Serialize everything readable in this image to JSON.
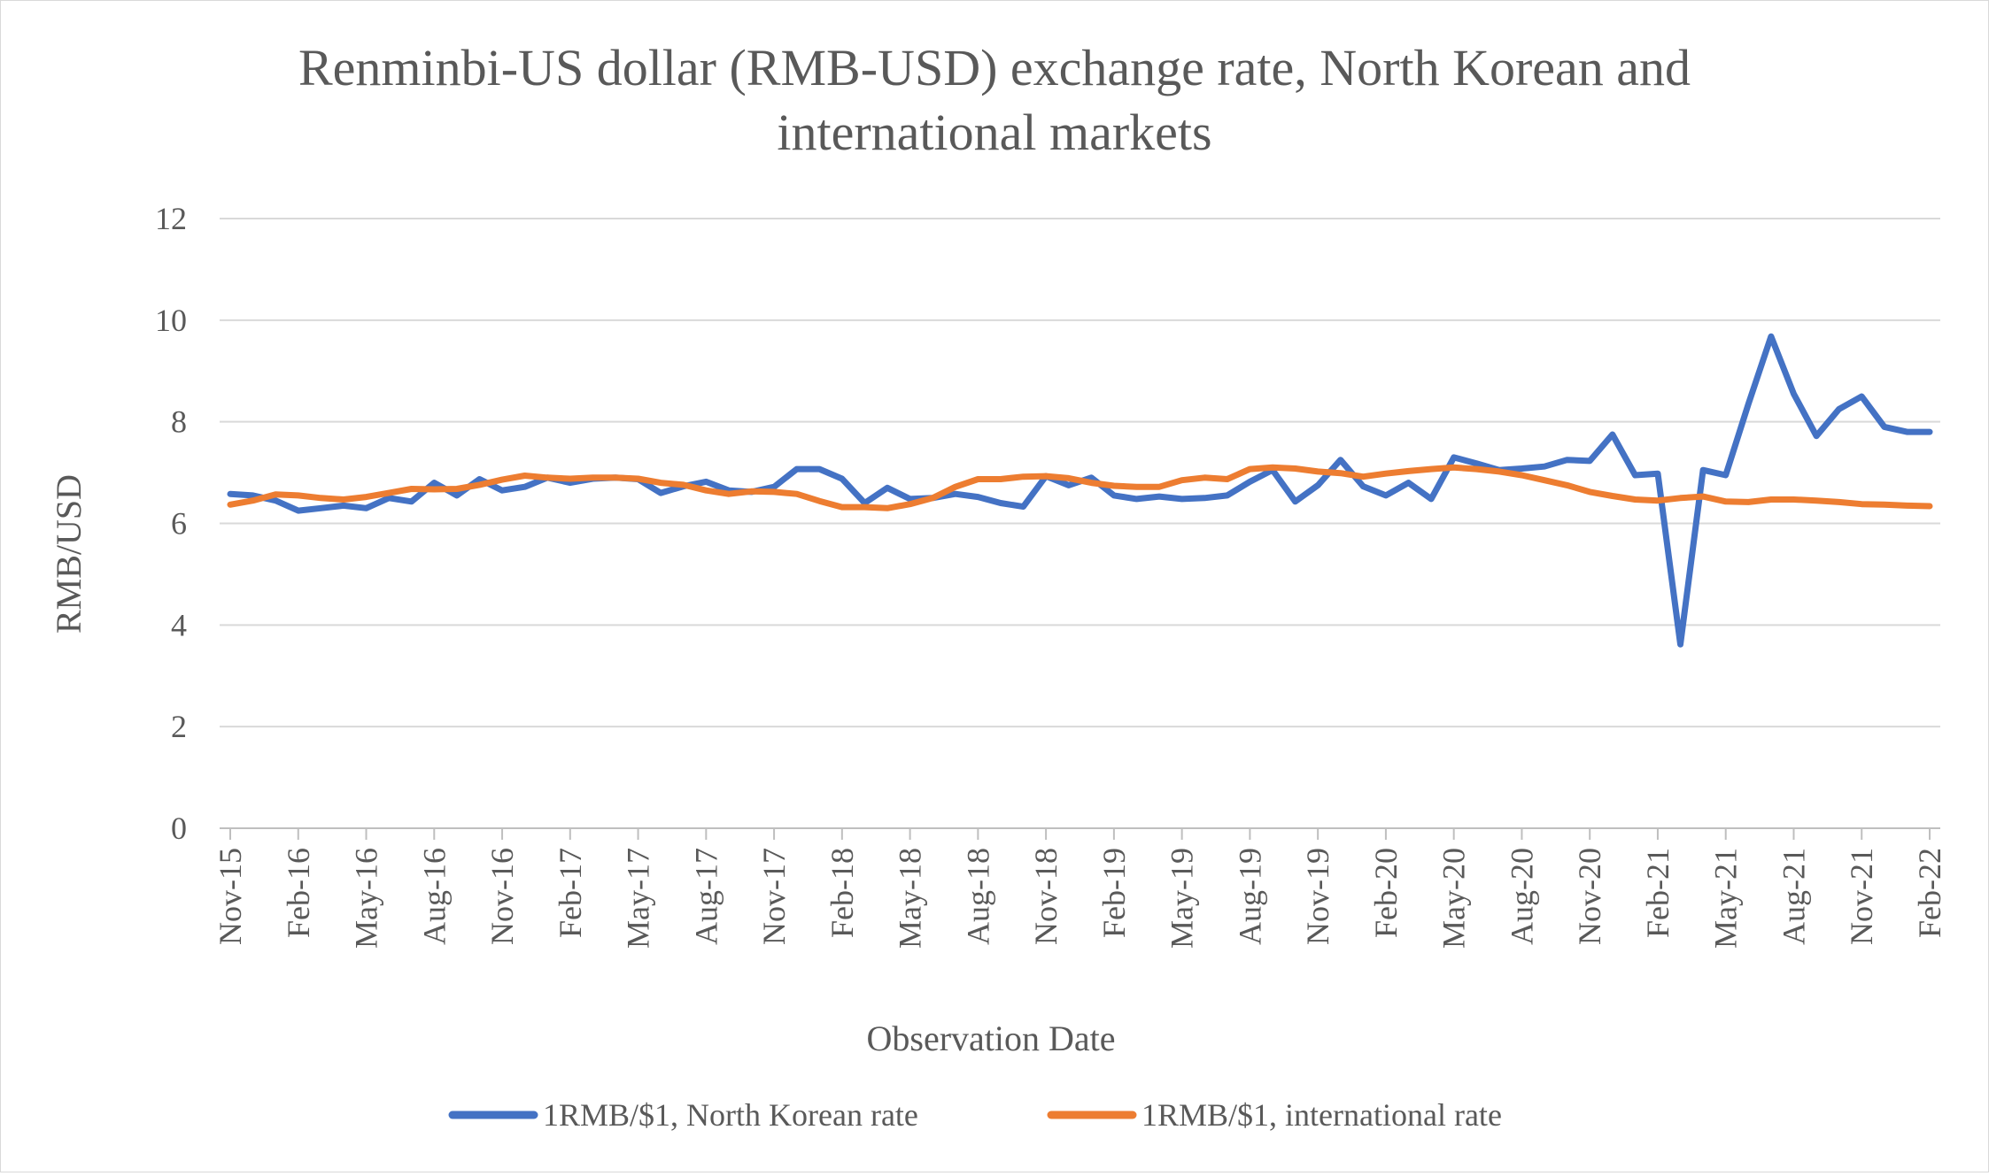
{
  "chart_data": {
    "type": "line",
    "title_lines": [
      "Renminbi-US dollar (RMB-USD) exchange rate, North Korean and",
      "international markets"
    ],
    "xlabel": "Observation Date",
    "ylabel": "RMB/USD",
    "ylim": [
      0,
      12
    ],
    "yticks": [
      "0",
      "2",
      "4",
      "6",
      "8",
      "10",
      "12"
    ],
    "grid": "horizontal",
    "legend_position": "bottom",
    "x_tick_labels": [
      "Nov-15",
      "Feb-16",
      "May-16",
      "Aug-16",
      "Nov-16",
      "Feb-17",
      "May-17",
      "Aug-17",
      "Nov-17",
      "Feb-18",
      "May-18",
      "Aug-18",
      "Nov-18",
      "Feb-19",
      "May-19",
      "Aug-19",
      "Nov-19",
      "Feb-20",
      "May-20",
      "Aug-20",
      "Nov-20",
      "Feb-21",
      "May-21",
      "Aug-21",
      "Nov-21",
      "Feb-22"
    ],
    "x": [
      "Nov-15",
      "Dec-15",
      "Jan-16",
      "Feb-16",
      "Mar-16",
      "Apr-16",
      "May-16",
      "Jun-16",
      "Jul-16",
      "Aug-16",
      "Sep-16",
      "Oct-16",
      "Nov-16",
      "Dec-16",
      "Jan-17",
      "Feb-17",
      "Mar-17",
      "Apr-17",
      "May-17",
      "Jun-17",
      "Jul-17",
      "Aug-17",
      "Sep-17",
      "Oct-17",
      "Nov-17",
      "Dec-17",
      "Jan-18",
      "Feb-18",
      "Mar-18",
      "Apr-18",
      "May-18",
      "Jun-18",
      "Jul-18",
      "Aug-18",
      "Sep-18",
      "Oct-18",
      "Nov-18",
      "Dec-18",
      "Jan-19",
      "Feb-19",
      "Mar-19",
      "Apr-19",
      "May-19",
      "Jun-19",
      "Jul-19",
      "Aug-19",
      "Sep-19",
      "Oct-19",
      "Nov-19",
      "Dec-19",
      "Jan-20",
      "Feb-20",
      "Mar-20",
      "Apr-20",
      "May-20",
      "Jun-20",
      "Jul-20",
      "Aug-20",
      "Sep-20",
      "Oct-20",
      "Nov-20",
      "Dec-20",
      "Jan-21",
      "Feb-21",
      "Mar-21",
      "Apr-21",
      "May-21",
      "Jun-21",
      "Jul-21",
      "Aug-21",
      "Sep-21",
      "Oct-21",
      "Nov-21",
      "Dec-21",
      "Jan-22",
      "Feb-22"
    ],
    "series": [
      {
        "name": "1RMB/$1, North Korean rate",
        "color": "#4472c4",
        "values": [
          6.58,
          6.55,
          6.45,
          6.25,
          6.3,
          6.35,
          6.3,
          6.5,
          6.43,
          6.8,
          6.55,
          6.87,
          6.65,
          6.72,
          6.9,
          6.8,
          6.88,
          6.9,
          6.87,
          6.6,
          6.73,
          6.82,
          6.65,
          6.62,
          6.72,
          7.07,
          7.07,
          6.88,
          6.4,
          6.7,
          6.48,
          6.5,
          6.58,
          6.52,
          6.4,
          6.33,
          6.93,
          6.75,
          6.9,
          6.55,
          6.48,
          6.53,
          6.48,
          6.5,
          6.55,
          6.82,
          7.05,
          6.43,
          6.75,
          7.25,
          6.73,
          6.55,
          6.8,
          6.48,
          7.3,
          7.18,
          7.05,
          7.08,
          7.12,
          7.25,
          7.23,
          7.75,
          6.95,
          6.98,
          3.62,
          7.05,
          6.95,
          8.35,
          9.68,
          8.55,
          7.72,
          8.25,
          8.5,
          7.9,
          7.8,
          7.8
        ]
      },
      {
        "name": "1RMB/$1, international rate",
        "color": "#ed7d31",
        "values": [
          6.37,
          6.45,
          6.57,
          6.55,
          6.5,
          6.47,
          6.52,
          6.6,
          6.68,
          6.67,
          6.68,
          6.76,
          6.86,
          6.94,
          6.9,
          6.88,
          6.9,
          6.9,
          6.88,
          6.8,
          6.76,
          6.65,
          6.58,
          6.63,
          6.62,
          6.58,
          6.44,
          6.32,
          6.32,
          6.3,
          6.38,
          6.5,
          6.72,
          6.87,
          6.87,
          6.92,
          6.93,
          6.89,
          6.8,
          6.74,
          6.72,
          6.72,
          6.85,
          6.9,
          6.87,
          7.07,
          7.1,
          7.08,
          7.02,
          6.99,
          6.92,
          6.98,
          7.03,
          7.07,
          7.1,
          7.07,
          7.02,
          6.95,
          6.85,
          6.75,
          6.62,
          6.54,
          6.47,
          6.45,
          6.5,
          6.53,
          6.43,
          6.42,
          6.47,
          6.47,
          6.45,
          6.42,
          6.38,
          6.37,
          6.35,
          6.34
        ]
      }
    ]
  }
}
